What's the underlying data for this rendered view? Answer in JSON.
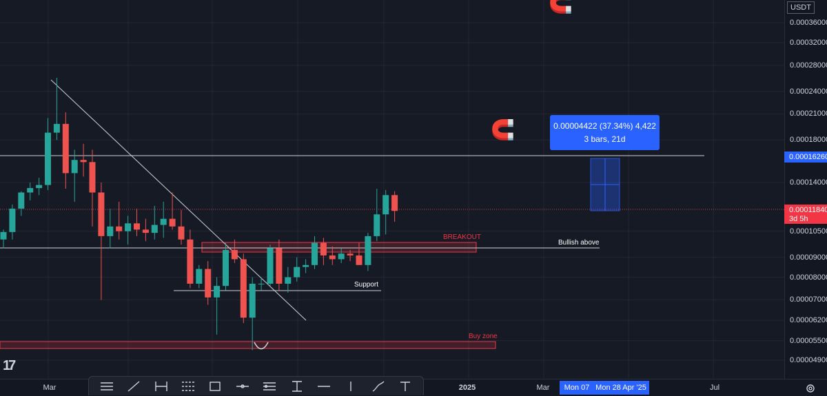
{
  "price_axis": {
    "currency": "USDT",
    "ticks": [
      "0.00036000",
      "0.00032000",
      "0.00028000",
      "0.00024000",
      "0.00021000",
      "0.00018000",
      "0.00014000",
      "0.00010500",
      "0.00009000",
      "0.00008000",
      "0.00007000",
      "0.00006200",
      "0.00005500",
      "0.00004900"
    ],
    "tick_values": [
      0.00036,
      0.00032,
      0.00028,
      0.00024,
      0.00021,
      0.00018,
      0.00014,
      0.000105,
      9e-05,
      8e-05,
      7e-05,
      6.2e-05,
      5.5e-05,
      4.9e-05
    ],
    "current_price": "0.00011840",
    "countdown": "3d 5h",
    "target_price": "0.00016260"
  },
  "time_axis": {
    "ticks": [
      {
        "label": "Mar",
        "bold": false
      },
      {
        "label": "2025",
        "bold": true
      },
      {
        "label": "Mar",
        "bold": false
      },
      {
        "label": "Jul",
        "bold": false
      }
    ],
    "cursor_labels": [
      "Mon 07",
      "Mon 28 Apr '25"
    ]
  },
  "measure": {
    "line1": "0.00004422 (37.34%) 4,422",
    "line2": "3 bars, 21d"
  },
  "annotations": {
    "breakout": "BREAKOUT",
    "bullish": "Bullish above",
    "support": "Support",
    "buy_zone": "Buy zone"
  },
  "colors": {
    "background": "#161a25",
    "up": "#26a69a",
    "down": "#ef5350",
    "accent": "#2962ff",
    "zone": "#f23645"
  },
  "icons": [
    "magnet-icon",
    "tradingview-logo",
    "settings-icon"
  ],
  "toolbar": {
    "tools": [
      "horizontal-lines-icon",
      "trend-line-icon",
      "long-position-icon",
      "fib-channel-icon",
      "rectangle-icon",
      "horizontal-ray-icon",
      "date-range-icon",
      "price-range-icon",
      "horizontal-line-icon",
      "vertical-line-icon",
      "brush-icon",
      "text-icon"
    ]
  },
  "chart_data": {
    "type": "candlestick",
    "title": "",
    "xlabel": "",
    "ylabel": "",
    "scale": "log",
    "ylim": [
      4.45e-05,
      0.00039
    ],
    "grid": true,
    "candles": [
      {
        "o": 0.0001,
        "h": 0.000106,
        "l": 9.5e-05,
        "c": 0.0001045
      },
      {
        "o": 0.0001045,
        "h": 0.000123,
        "l": 0.0001,
        "c": 0.00012
      },
      {
        "o": 0.00012,
        "h": 0.000133,
        "l": 0.000115,
        "c": 0.000132
      },
      {
        "o": 0.000132,
        "h": 0.00014,
        "l": 0.000126,
        "c": 0.0001355
      },
      {
        "o": 0.0001355,
        "h": 0.000144,
        "l": 0.00013,
        "c": 0.000138
      },
      {
        "o": 0.000138,
        "h": 0.000205,
        "l": 0.000134,
        "c": 0.000188
      },
      {
        "o": 0.000188,
        "h": 0.00026,
        "l": 0.00018,
        "c": 0.000198
      },
      {
        "o": 0.000198,
        "h": 0.000212,
        "l": 0.000135,
        "c": 0.000148
      },
      {
        "o": 0.000148,
        "h": 0.00017,
        "l": 0.000125,
        "c": 0.00016
      },
      {
        "o": 0.00016,
        "h": 0.000176,
        "l": 0.000145,
        "c": 0.000158
      },
      {
        "o": 0.000158,
        "h": 0.00017,
        "l": 0.000108,
        "c": 0.000132
      },
      {
        "o": 0.000132,
        "h": 0.00014,
        "l": 7e-05,
        "c": 0.000102
      },
      {
        "o": 0.000102,
        "h": 0.00012,
        "l": 9.5e-05,
        "c": 0.000108
      },
      {
        "o": 0.000108,
        "h": 0.000125,
        "l": 0.0001,
        "c": 0.000105
      },
      {
        "o": 0.000105,
        "h": 0.000115,
        "l": 9.7e-05,
        "c": 0.00011
      },
      {
        "o": 0.00011,
        "h": 0.00012,
        "l": 0.000102,
        "c": 0.000106
      },
      {
        "o": 0.000106,
        "h": 0.000113,
        "l": 9.9e-05,
        "c": 0.000104
      },
      {
        "o": 0.000104,
        "h": 0.000122,
        "l": 0.0001,
        "c": 0.000109
      },
      {
        "o": 0.000109,
        "h": 0.000125,
        "l": 0.000101,
        "c": 0.000113
      },
      {
        "o": 0.000113,
        "h": 0.000132,
        "l": 0.000106,
        "c": 0.000108
      },
      {
        "o": 0.000108,
        "h": 0.000119,
        "l": 9.7e-05,
        "c": 0.0001
      },
      {
        "o": 0.0001,
        "h": 0.000106,
        "l": 7.5e-05,
        "c": 7.7e-05
      },
      {
        "o": 7.7e-05,
        "h": 8.6e-05,
        "l": 7.5e-05,
        "c": 8.4e-05
      },
      {
        "o": 8.4e-05,
        "h": 8.8e-05,
        "l": 6.8e-05,
        "c": 7.1e-05
      },
      {
        "o": 7.1e-05,
        "h": 8e-05,
        "l": 5.7e-05,
        "c": 7.6e-05
      },
      {
        "o": 7.6e-05,
        "h": 9.8e-05,
        "l": 7.4e-05,
        "c": 9.4e-05
      },
      {
        "o": 9.4e-05,
        "h": 0.0001,
        "l": 8.7e-05,
        "c": 8.9e-05
      },
      {
        "o": 8.9e-05,
        "h": 9.2e-05,
        "l": 6.1e-05,
        "c": 6.3e-05
      },
      {
        "o": 6.3e-05,
        "h": 8e-05,
        "l": 5.2e-05,
        "c": 7.7e-05
      },
      {
        "o": 7.7e-05,
        "h": 8e-05,
        "l": 7.4e-05,
        "c": 7.7e-05
      },
      {
        "o": 7.7e-05,
        "h": 9.7e-05,
        "l": 7.6e-05,
        "c": 9.5e-05
      },
      {
        "o": 9.5e-05,
        "h": 0.0001,
        "l": 7.4e-05,
        "c": 7.7e-05
      },
      {
        "o": 7.7e-05,
        "h": 8.5e-05,
        "l": 7.3e-05,
        "c": 8e-05
      },
      {
        "o": 8e-05,
        "h": 9e-05,
        "l": 7.8e-05,
        "c": 8.5e-05
      },
      {
        "o": 8.5e-05,
        "h": 8.9e-05,
        "l": 8.2e-05,
        "c": 8.6e-05
      },
      {
        "o": 8.6e-05,
        "h": 0.000102,
        "l": 8.4e-05,
        "c": 9.8e-05
      },
      {
        "o": 9.8e-05,
        "h": 0.000101,
        "l": 8.6e-05,
        "c": 9.1e-05
      },
      {
        "o": 9.1e-05,
        "h": 9.6e-05,
        "l": 8.6e-05,
        "c": 8.9e-05
      },
      {
        "o": 8.9e-05,
        "h": 9.5e-05,
        "l": 8.7e-05,
        "c": 9.2e-05
      },
      {
        "o": 9.2e-05,
        "h": 9.4e-05,
        "l": 8.8e-05,
        "c": 9.1e-05
      },
      {
        "o": 9.1e-05,
        "h": 9.8e-05,
        "l": 8.6e-05,
        "c": 8.6e-05
      },
      {
        "o": 8.6e-05,
        "h": 0.000104,
        "l": 8.3e-05,
        "c": 0.000102
      },
      {
        "o": 0.000102,
        "h": 0.000135,
        "l": 9.9e-05,
        "c": 0.000116
      },
      {
        "o": 0.000116,
        "h": 0.000134,
        "l": 0.000103,
        "c": 0.00013
      },
      {
        "o": 0.00013,
        "h": 0.000133,
        "l": 0.000111,
        "c": 0.0001184
      }
    ]
  }
}
